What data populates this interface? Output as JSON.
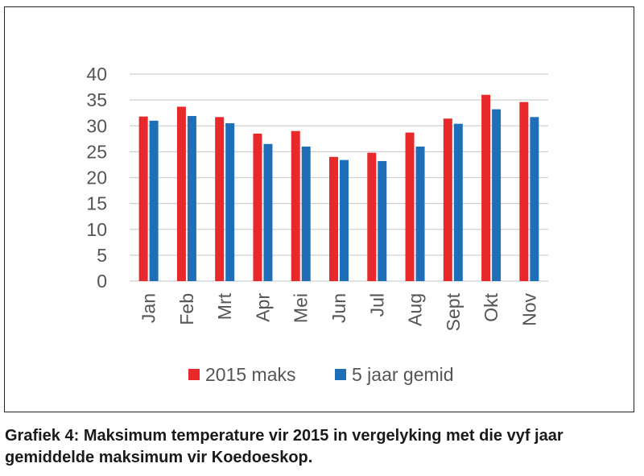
{
  "chart_data": {
    "type": "bar",
    "categories": [
      "Jan",
      "Feb",
      "Mrt",
      "Apr",
      "Mei",
      "Jun",
      "Jul",
      "Aug",
      "Sept",
      "Okt",
      "Nov"
    ],
    "series": [
      {
        "name": "2015 maks",
        "color": "#e8282b",
        "values": [
          31.8,
          33.7,
          31.7,
          28.5,
          29.0,
          24.0,
          24.8,
          28.7,
          31.4,
          36.0,
          34.6
        ]
      },
      {
        "name": "5 jaar gemid",
        "color": "#1f6fb8",
        "values": [
          31.0,
          31.9,
          30.5,
          26.5,
          26.0,
          23.4,
          23.2,
          26.0,
          30.4,
          33.2,
          31.7
        ]
      }
    ],
    "ylim": [
      0,
      40
    ],
    "yticks": [
      0,
      5,
      10,
      15,
      20,
      25,
      30,
      35,
      40
    ],
    "grid": true,
    "legend_position": "bottom"
  },
  "caption": "Grafiek 4: Maksimum temperature vir 2015 in vergelyking met die vyf jaar gemiddelde maksimum vir Koedoeskop."
}
